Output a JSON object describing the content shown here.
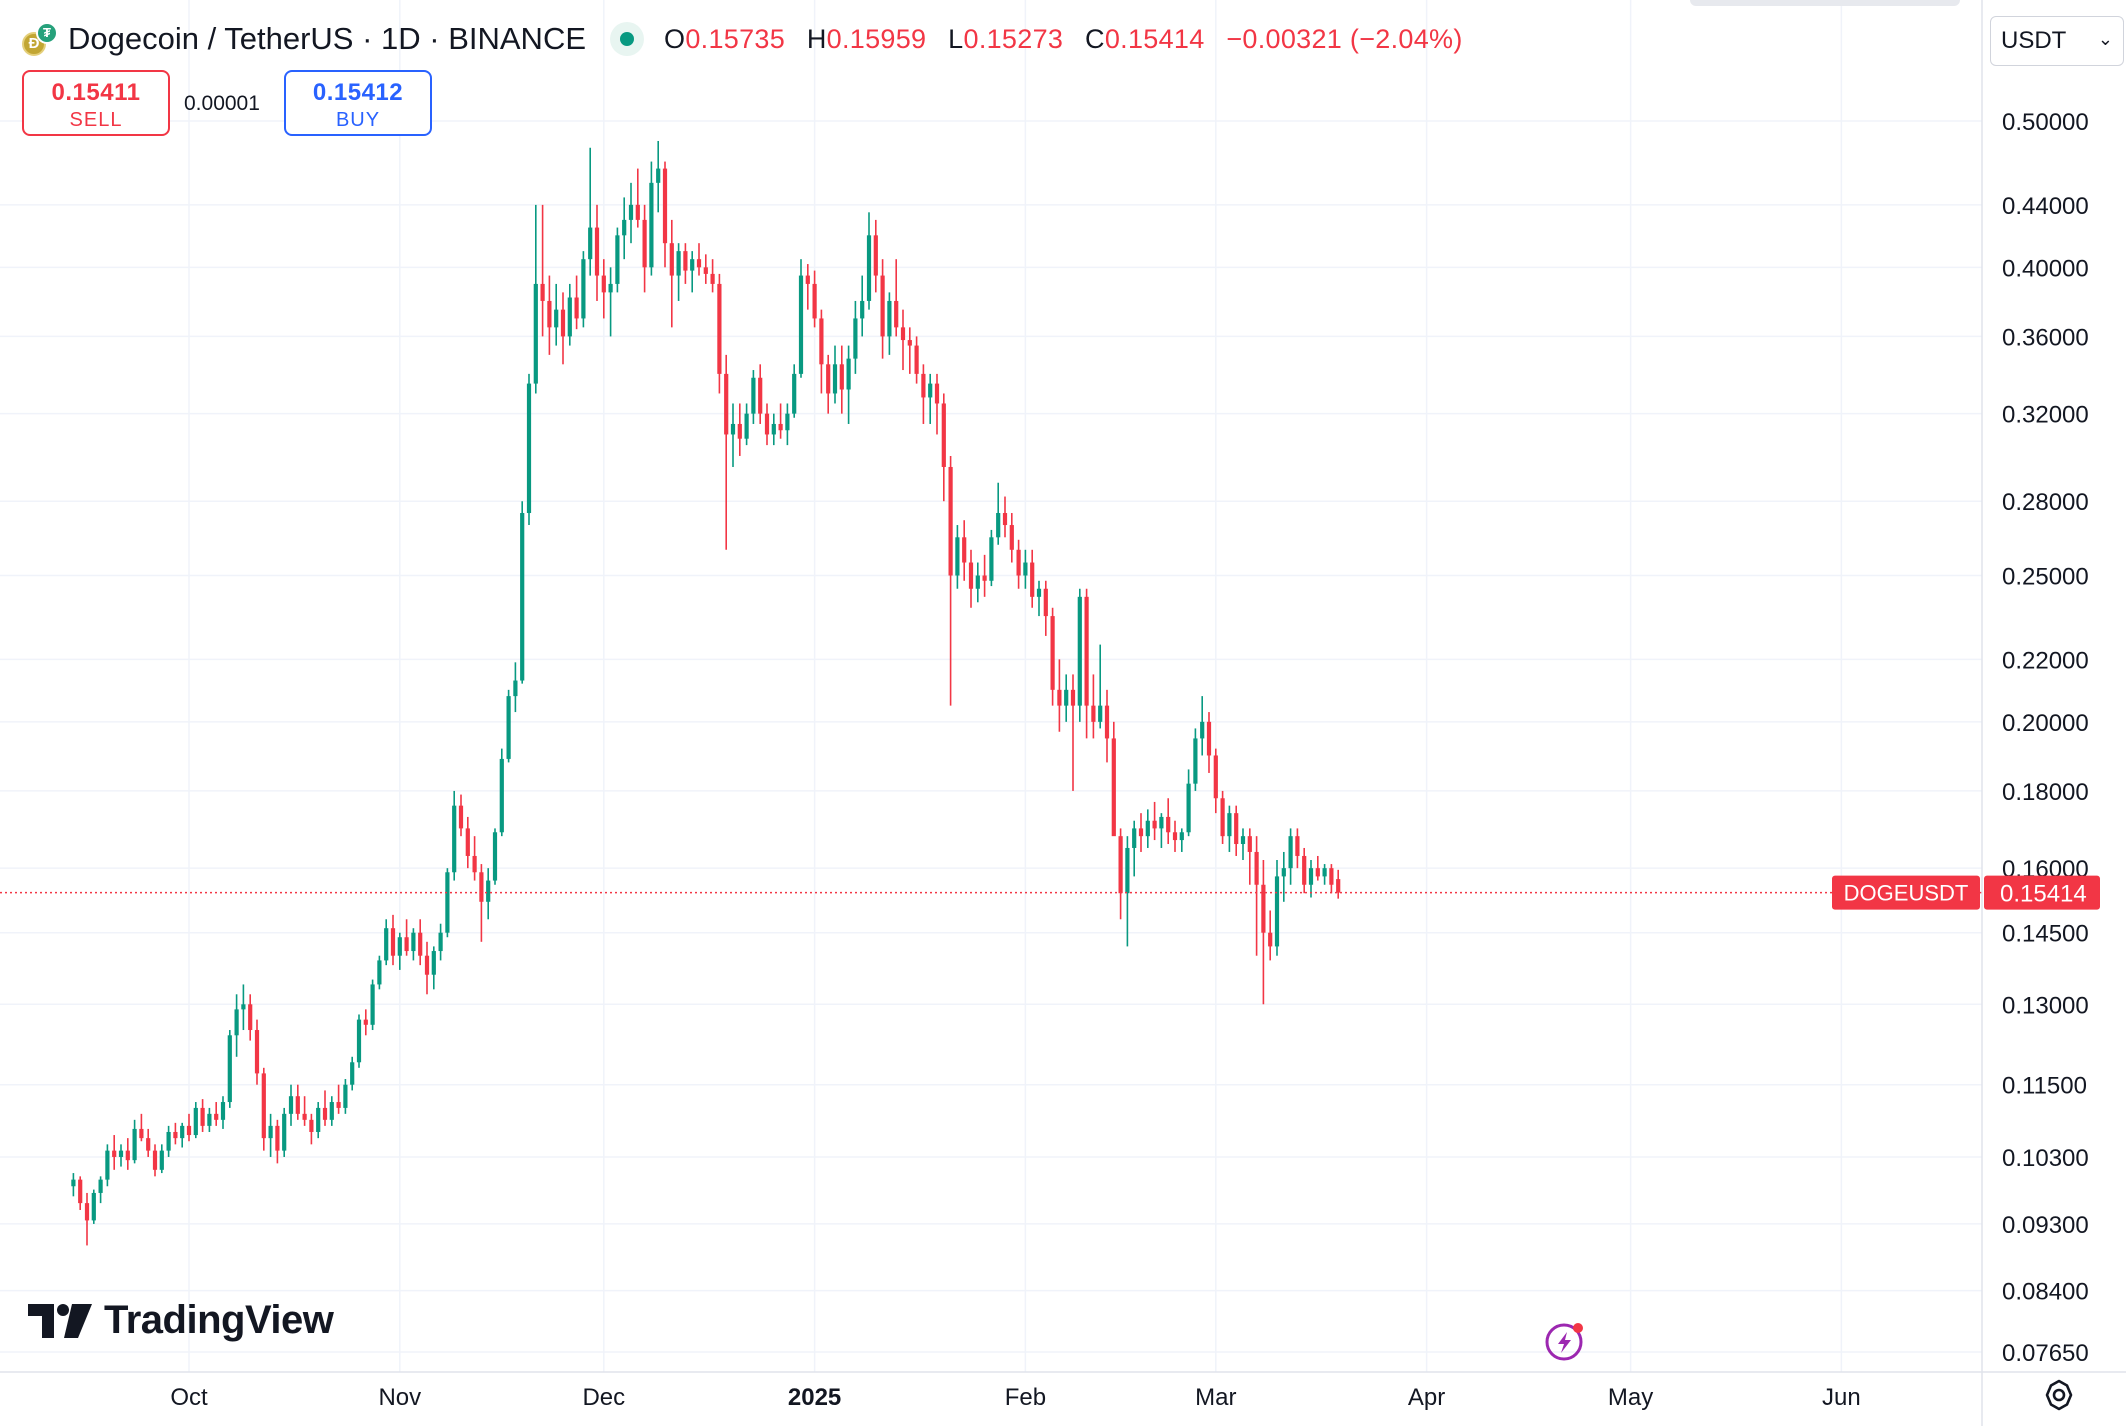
{
  "header": {
    "symbol_title": "Dogecoin / TetherUS · 1D · BINANCE",
    "ohlc": {
      "o_label": "O",
      "o_value": "0.15735",
      "h_label": "H",
      "h_value": "0.15959",
      "l_label": "L",
      "l_value": "0.15273",
      "c_label": "C",
      "c_value": "0.15414",
      "change": "−0.00321 (−2.04%)"
    }
  },
  "trade": {
    "sell_price": "0.15411",
    "sell_label": "SELL",
    "spread": "0.00001",
    "buy_price": "0.15412",
    "buy_label": "BUY"
  },
  "currency": {
    "selected": "USDT"
  },
  "branding": {
    "logo_text": "TradingView"
  },
  "icons": {
    "coin": "dogecoin-icon",
    "status": "market-open-dot-icon",
    "chevron": "chevron-down-icon",
    "bolt": "lightning-bolt-icon",
    "settings": "settings-gear-icon"
  },
  "colors": {
    "up": "#089981",
    "down": "#f23645",
    "grid": "#f0f3fa",
    "text": "#131722"
  },
  "chart_data": {
    "type": "candlestick",
    "symbol": "DOGEUSDT",
    "last_price": "0.15414",
    "price_scale": "log",
    "y_ticks": [
      "0.50000",
      "0.44000",
      "0.40000",
      "0.36000",
      "0.32000",
      "0.28000",
      "0.25000",
      "0.22000",
      "0.20000",
      "0.18000",
      "0.16000",
      "0.14500",
      "0.13000",
      "0.11500",
      "0.10300",
      "0.09300",
      "0.08400",
      "0.07650"
    ],
    "x_ticks": [
      {
        "label": "Oct",
        "date": "2024-10-01",
        "bold": false
      },
      {
        "label": "Nov",
        "date": "2024-11-01",
        "bold": false
      },
      {
        "label": "Dec",
        "date": "2024-12-01",
        "bold": false
      },
      {
        "label": "2025",
        "date": "2025-01-01",
        "bold": true
      },
      {
        "label": "Feb",
        "date": "2025-02-01",
        "bold": false
      },
      {
        "label": "Mar",
        "date": "2025-03-01",
        "bold": false
      },
      {
        "label": "Apr",
        "date": "2025-04-01",
        "bold": false
      },
      {
        "label": "May",
        "date": "2025-05-01",
        "bold": false
      },
      {
        "label": "Jun",
        "date": "2025-06-01",
        "bold": false
      }
    ],
    "first_candle_date": "2024-09-14",
    "candles": [
      [
        0.0985,
        0.1005,
        0.097,
        0.0995
      ],
      [
        0.0995,
        0.1,
        0.095,
        0.096
      ],
      [
        0.096,
        0.0975,
        0.09,
        0.0935
      ],
      [
        0.0935,
        0.098,
        0.093,
        0.0975
      ],
      [
        0.0975,
        0.1,
        0.096,
        0.0995
      ],
      [
        0.0995,
        0.105,
        0.0985,
        0.104
      ],
      [
        0.104,
        0.1065,
        0.101,
        0.103
      ],
      [
        0.103,
        0.105,
        0.1015,
        0.104
      ],
      [
        0.104,
        0.106,
        0.101,
        0.1025
      ],
      [
        0.1025,
        0.109,
        0.102,
        0.1075
      ],
      [
        0.1075,
        0.11,
        0.1055,
        0.106
      ],
      [
        0.106,
        0.1075,
        0.103,
        0.104
      ],
      [
        0.104,
        0.105,
        0.1,
        0.101
      ],
      [
        0.101,
        0.105,
        0.1005,
        0.104
      ],
      [
        0.104,
        0.108,
        0.103,
        0.107
      ],
      [
        0.107,
        0.1085,
        0.105,
        0.106
      ],
      [
        0.106,
        0.1085,
        0.1045,
        0.108
      ],
      [
        0.108,
        0.11,
        0.1055,
        0.1065
      ],
      [
        0.1065,
        0.112,
        0.106,
        0.111
      ],
      [
        0.111,
        0.1125,
        0.107,
        0.108
      ],
      [
        0.108,
        0.111,
        0.107,
        0.11
      ],
      [
        0.11,
        0.112,
        0.108,
        0.109
      ],
      [
        0.109,
        0.113,
        0.1075,
        0.112
      ],
      [
        0.112,
        0.125,
        0.111,
        0.124
      ],
      [
        0.124,
        0.132,
        0.12,
        0.129
      ],
      [
        0.129,
        0.134,
        0.125,
        0.13
      ],
      [
        0.13,
        0.132,
        0.123,
        0.125
      ],
      [
        0.125,
        0.127,
        0.115,
        0.117
      ],
      [
        0.117,
        0.118,
        0.104,
        0.106
      ],
      [
        0.106,
        0.11,
        0.103,
        0.108
      ],
      [
        0.108,
        0.109,
        0.102,
        0.104
      ],
      [
        0.104,
        0.111,
        0.103,
        0.11
      ],
      [
        0.11,
        0.115,
        0.108,
        0.113
      ],
      [
        0.113,
        0.115,
        0.109,
        0.11
      ],
      [
        0.11,
        0.113,
        0.108,
        0.109
      ],
      [
        0.109,
        0.11,
        0.105,
        0.107
      ],
      [
        0.107,
        0.112,
        0.106,
        0.111
      ],
      [
        0.111,
        0.114,
        0.108,
        0.109
      ],
      [
        0.109,
        0.113,
        0.108,
        0.112
      ],
      [
        0.112,
        0.115,
        0.11,
        0.111
      ],
      [
        0.111,
        0.116,
        0.11,
        0.115
      ],
      [
        0.115,
        0.12,
        0.114,
        0.119
      ],
      [
        0.119,
        0.128,
        0.118,
        0.127
      ],
      [
        0.127,
        0.129,
        0.124,
        0.126
      ],
      [
        0.126,
        0.135,
        0.125,
        0.134
      ],
      [
        0.134,
        0.14,
        0.133,
        0.139
      ],
      [
        0.139,
        0.148,
        0.138,
        0.146
      ],
      [
        0.146,
        0.149,
        0.138,
        0.14
      ],
      [
        0.14,
        0.145,
        0.137,
        0.144
      ],
      [
        0.144,
        0.148,
        0.14,
        0.141
      ],
      [
        0.141,
        0.146,
        0.139,
        0.145
      ],
      [
        0.145,
        0.148,
        0.138,
        0.14
      ],
      [
        0.14,
        0.143,
        0.132,
        0.136
      ],
      [
        0.136,
        0.142,
        0.133,
        0.141
      ],
      [
        0.141,
        0.147,
        0.139,
        0.145
      ],
      [
        0.145,
        0.16,
        0.144,
        0.159
      ],
      [
        0.159,
        0.18,
        0.157,
        0.176
      ],
      [
        0.176,
        0.179,
        0.168,
        0.17
      ],
      [
        0.17,
        0.173,
        0.16,
        0.163
      ],
      [
        0.163,
        0.168,
        0.157,
        0.159
      ],
      [
        0.159,
        0.161,
        0.143,
        0.152
      ],
      [
        0.152,
        0.16,
        0.148,
        0.157
      ],
      [
        0.157,
        0.17,
        0.156,
        0.169
      ],
      [
        0.169,
        0.192,
        0.168,
        0.189
      ],
      [
        0.189,
        0.21,
        0.188,
        0.208
      ],
      [
        0.208,
        0.219,
        0.203,
        0.213
      ],
      [
        0.213,
        0.28,
        0.212,
        0.275
      ],
      [
        0.275,
        0.34,
        0.27,
        0.335
      ],
      [
        0.335,
        0.44,
        0.33,
        0.39
      ],
      [
        0.39,
        0.44,
        0.36,
        0.38
      ],
      [
        0.38,
        0.395,
        0.35,
        0.365
      ],
      [
        0.365,
        0.39,
        0.355,
        0.375
      ],
      [
        0.375,
        0.385,
        0.345,
        0.36
      ],
      [
        0.36,
        0.39,
        0.355,
        0.382
      ],
      [
        0.382,
        0.395,
        0.364,
        0.37
      ],
      [
        0.37,
        0.41,
        0.365,
        0.405
      ],
      [
        0.405,
        0.48,
        0.395,
        0.425
      ],
      [
        0.425,
        0.44,
        0.38,
        0.395
      ],
      [
        0.395,
        0.405,
        0.37,
        0.385
      ],
      [
        0.385,
        0.4,
        0.36,
        0.39
      ],
      [
        0.39,
        0.425,
        0.385,
        0.42
      ],
      [
        0.42,
        0.445,
        0.405,
        0.43
      ],
      [
        0.43,
        0.455,
        0.415,
        0.44
      ],
      [
        0.44,
        0.465,
        0.425,
        0.43
      ],
      [
        0.43,
        0.44,
        0.385,
        0.4
      ],
      [
        0.4,
        0.47,
        0.395,
        0.455
      ],
      [
        0.455,
        0.485,
        0.435,
        0.465
      ],
      [
        0.465,
        0.47,
        0.4,
        0.415
      ],
      [
        0.415,
        0.43,
        0.365,
        0.395
      ],
      [
        0.395,
        0.415,
        0.38,
        0.41
      ],
      [
        0.41,
        0.415,
        0.39,
        0.398
      ],
      [
        0.398,
        0.41,
        0.385,
        0.405
      ],
      [
        0.405,
        0.415,
        0.395,
        0.4
      ],
      [
        0.4,
        0.408,
        0.39,
        0.396
      ],
      [
        0.396,
        0.405,
        0.385,
        0.39
      ],
      [
        0.39,
        0.396,
        0.33,
        0.34
      ],
      [
        0.34,
        0.35,
        0.26,
        0.31
      ],
      [
        0.31,
        0.325,
        0.295,
        0.315
      ],
      [
        0.315,
        0.325,
        0.3,
        0.308
      ],
      [
        0.308,
        0.325,
        0.305,
        0.32
      ],
      [
        0.32,
        0.342,
        0.315,
        0.338
      ],
      [
        0.338,
        0.345,
        0.315,
        0.32
      ],
      [
        0.32,
        0.325,
        0.305,
        0.31
      ],
      [
        0.31,
        0.32,
        0.305,
        0.315
      ],
      [
        0.315,
        0.325,
        0.308,
        0.312
      ],
      [
        0.312,
        0.325,
        0.305,
        0.32
      ],
      [
        0.32,
        0.345,
        0.318,
        0.34
      ],
      [
        0.34,
        0.405,
        0.338,
        0.395
      ],
      [
        0.395,
        0.402,
        0.375,
        0.39
      ],
      [
        0.39,
        0.398,
        0.365,
        0.37
      ],
      [
        0.37,
        0.375,
        0.33,
        0.345
      ],
      [
        0.345,
        0.35,
        0.32,
        0.33
      ],
      [
        0.33,
        0.355,
        0.325,
        0.345
      ],
      [
        0.345,
        0.355,
        0.32,
        0.332
      ],
      [
        0.332,
        0.355,
        0.315,
        0.348
      ],
      [
        0.348,
        0.38,
        0.34,
        0.37
      ],
      [
        0.37,
        0.395,
        0.36,
        0.38
      ],
      [
        0.38,
        0.435,
        0.375,
        0.42
      ],
      [
        0.42,
        0.43,
        0.385,
        0.395
      ],
      [
        0.395,
        0.405,
        0.348,
        0.36
      ],
      [
        0.36,
        0.385,
        0.35,
        0.38
      ],
      [
        0.38,
        0.405,
        0.36,
        0.365
      ],
      [
        0.365,
        0.375,
        0.342,
        0.358
      ],
      [
        0.358,
        0.365,
        0.34,
        0.355
      ],
      [
        0.355,
        0.36,
        0.335,
        0.34
      ],
      [
        0.34,
        0.345,
        0.315,
        0.328
      ],
      [
        0.328,
        0.34,
        0.315,
        0.335
      ],
      [
        0.335,
        0.34,
        0.31,
        0.325
      ],
      [
        0.325,
        0.33,
        0.28,
        0.295
      ],
      [
        0.295,
        0.3,
        0.205,
        0.25
      ],
      [
        0.25,
        0.27,
        0.245,
        0.265
      ],
      [
        0.265,
        0.272,
        0.248,
        0.255
      ],
      [
        0.255,
        0.26,
        0.238,
        0.245
      ],
      [
        0.245,
        0.255,
        0.24,
        0.25
      ],
      [
        0.25,
        0.258,
        0.242,
        0.248
      ],
      [
        0.248,
        0.268,
        0.246,
        0.265
      ],
      [
        0.265,
        0.288,
        0.262,
        0.275
      ],
      [
        0.275,
        0.282,
        0.265,
        0.27
      ],
      [
        0.27,
        0.275,
        0.255,
        0.26
      ],
      [
        0.26,
        0.264,
        0.245,
        0.25
      ],
      [
        0.25,
        0.26,
        0.245,
        0.255
      ],
      [
        0.255,
        0.26,
        0.238,
        0.242
      ],
      [
        0.242,
        0.248,
        0.235,
        0.245
      ],
      [
        0.245,
        0.248,
        0.228,
        0.235
      ],
      [
        0.235,
        0.238,
        0.205,
        0.21
      ],
      [
        0.21,
        0.22,
        0.197,
        0.205
      ],
      [
        0.205,
        0.215,
        0.2,
        0.21
      ],
      [
        0.21,
        0.215,
        0.18,
        0.205
      ],
      [
        0.205,
        0.245,
        0.2,
        0.242
      ],
      [
        0.242,
        0.245,
        0.195,
        0.205
      ],
      [
        0.205,
        0.215,
        0.195,
        0.2
      ],
      [
        0.2,
        0.225,
        0.198,
        0.205
      ],
      [
        0.205,
        0.21,
        0.188,
        0.195
      ],
      [
        0.195,
        0.2,
        0.17,
        0.168
      ],
      [
        0.168,
        0.17,
        0.148,
        0.154
      ],
      [
        0.154,
        0.168,
        0.142,
        0.165
      ],
      [
        0.165,
        0.172,
        0.158,
        0.17
      ],
      [
        0.17,
        0.174,
        0.164,
        0.168
      ],
      [
        0.168,
        0.175,
        0.165,
        0.172
      ],
      [
        0.172,
        0.177,
        0.167,
        0.17
      ],
      [
        0.17,
        0.174,
        0.165,
        0.173
      ],
      [
        0.173,
        0.178,
        0.166,
        0.169
      ],
      [
        0.169,
        0.172,
        0.164,
        0.167
      ],
      [
        0.167,
        0.17,
        0.164,
        0.169
      ],
      [
        0.169,
        0.186,
        0.168,
        0.182
      ],
      [
        0.182,
        0.198,
        0.18,
        0.195
      ],
      [
        0.195,
        0.208,
        0.19,
        0.2
      ],
      [
        0.2,
        0.203,
        0.185,
        0.19
      ],
      [
        0.19,
        0.192,
        0.174,
        0.178
      ],
      [
        0.178,
        0.18,
        0.166,
        0.168
      ],
      [
        0.168,
        0.176,
        0.164,
        0.174
      ],
      [
        0.174,
        0.176,
        0.163,
        0.166
      ],
      [
        0.166,
        0.17,
        0.162,
        0.168
      ],
      [
        0.168,
        0.17,
        0.156,
        0.164
      ],
      [
        0.164,
        0.168,
        0.14,
        0.156
      ],
      [
        0.156,
        0.162,
        0.13,
        0.145
      ],
      [
        0.145,
        0.15,
        0.139,
        0.142
      ],
      [
        0.142,
        0.162,
        0.14,
        0.158
      ],
      [
        0.158,
        0.164,
        0.152,
        0.16
      ],
      [
        0.16,
        0.17,
        0.156,
        0.168
      ],
      [
        0.168,
        0.17,
        0.16,
        0.163
      ],
      [
        0.163,
        0.165,
        0.154,
        0.156
      ],
      [
        0.156,
        0.162,
        0.153,
        0.16
      ],
      [
        0.16,
        0.163,
        0.157,
        0.158
      ],
      [
        0.158,
        0.161,
        0.156,
        0.16
      ],
      [
        0.16,
        0.161,
        0.154,
        0.156
      ],
      [
        0.15735,
        0.15959,
        0.15273,
        0.15414
      ]
    ]
  }
}
